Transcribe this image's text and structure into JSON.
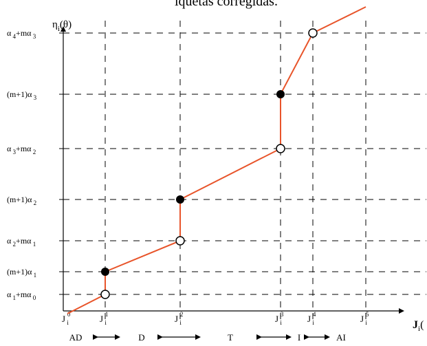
{
  "header": {
    "caption": "iquetas corregidas."
  },
  "y_axis": {
    "symbol": "η",
    "subscript": "i",
    "arg": "(θ)"
  },
  "x_axis": {
    "symbol": "J",
    "subscript": "i",
    "arg": "("
  },
  "y_levels": [
    {
      "id": "a1m0",
      "main": "α",
      "sub1": "1",
      "mid": "+mα",
      "sub2": "0"
    },
    {
      "id": "m1a1",
      "main": "(m+1)α",
      "sub1": "1",
      "mid": "",
      "sub2": ""
    },
    {
      "id": "a2m1",
      "main": "α",
      "sub1": "2",
      "mid": "+mα",
      "sub2": "1"
    },
    {
      "id": "m1a2",
      "main": "(m+1)α",
      "sub1": "2",
      "mid": "",
      "sub2": ""
    },
    {
      "id": "a3m2",
      "main": "α",
      "sub1": "3",
      "mid": "+mα",
      "sub2": "2"
    },
    {
      "id": "m1a3",
      "main": "(m+1)α",
      "sub1": "3",
      "mid": "",
      "sub2": ""
    },
    {
      "id": "a4m3",
      "main": "α",
      "sub1": "4",
      "mid": "+mα",
      "sub2": "3"
    }
  ],
  "x_levels": [
    {
      "id": "j0",
      "sym": "J",
      "sub": "i",
      "sup": "0"
    },
    {
      "id": "j1",
      "sym": "J",
      "sub": "i",
      "sup": "1"
    },
    {
      "id": "j2",
      "sym": "J",
      "sub": "i",
      "sup": "2"
    },
    {
      "id": "j3",
      "sym": "J",
      "sub": "i",
      "sup": "3"
    },
    {
      "id": "j4",
      "sym": "J",
      "sub": "i",
      "sup": "4"
    },
    {
      "id": "j5",
      "sym": "J",
      "sub": "i",
      "sup": "5"
    }
  ],
  "regions": [
    {
      "id": "ad",
      "label": "AD"
    },
    {
      "id": "d",
      "label": "D"
    },
    {
      "id": "t",
      "label": "T"
    },
    {
      "id": "i",
      "label": "I"
    },
    {
      "id": "ai",
      "label": "AI"
    }
  ],
  "colors": {
    "curve": "#e8542a",
    "axis": "#000000",
    "grid": "#000000"
  }
}
